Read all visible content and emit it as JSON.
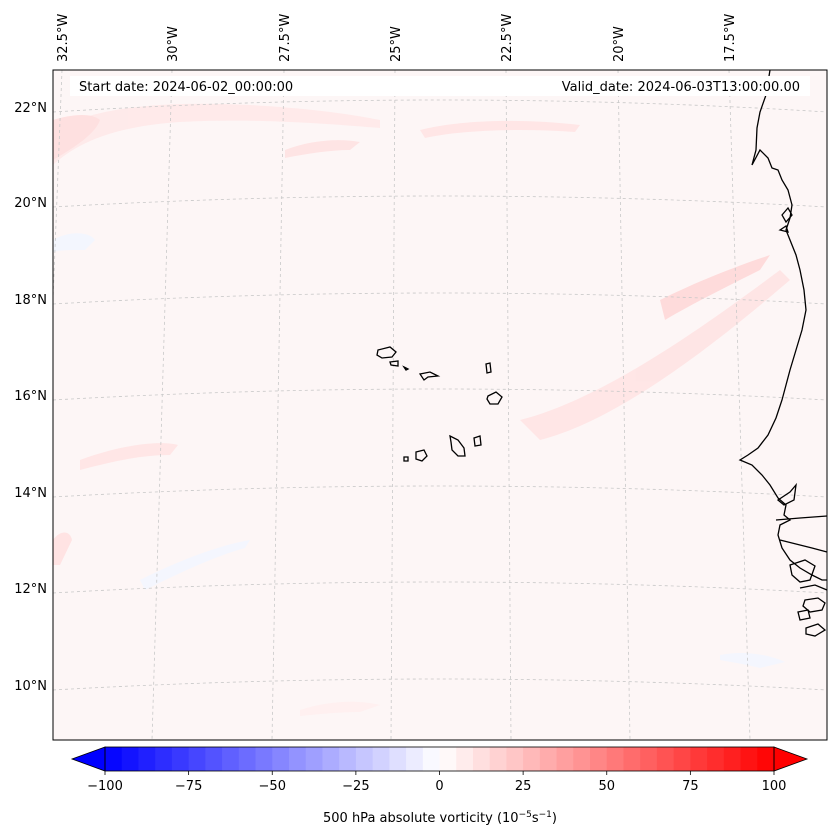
{
  "map": {
    "start_date": "Start date: 2024-06-02_00:00:00",
    "valid_date": "Valid_date: 2024-06-03T13:00:00.00",
    "longitude_labels": [
      "32.5°W",
      "30°W",
      "27.5°W",
      "25°W",
      "22.5°W",
      "20°W",
      "17.5°W"
    ],
    "latitude_labels": [
      "22°N",
      "20°N",
      "18°N",
      "16°N",
      "14°N",
      "12°N",
      "10°N"
    ],
    "field_color": "#fdf6f6",
    "coastline_color": "#000000",
    "gridline_color": "#c8c8c8"
  },
  "colorbar": {
    "label": "500 hPa absolute vorticity (10",
    "unit_exp1": "−5",
    "unit_mid": "s",
    "unit_exp2": "−1",
    "unit_end": ")",
    "min": -100,
    "max": 100,
    "step": 5,
    "ticks": [
      "−100",
      "−75",
      "−50",
      "−25",
      "0",
      "25",
      "50",
      "75",
      "100"
    ],
    "cmap_low": "#0000ff",
    "cmap_mid": "#ffffff",
    "cmap_high": "#ff0000"
  }
}
